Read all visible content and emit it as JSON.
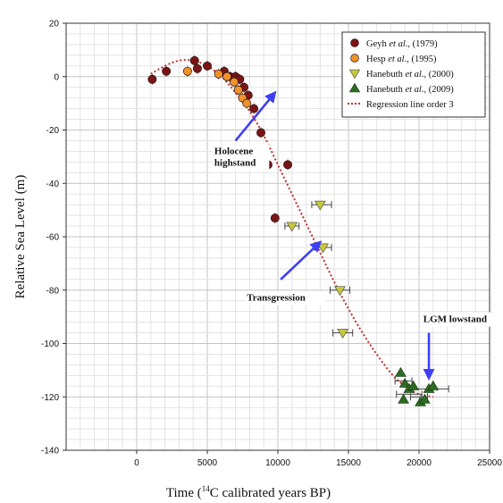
{
  "chart_data": {
    "type": "scatter",
    "xlabel_prefix": "Time (",
    "xlabel_sup": "14",
    "xlabel_suffix": "C calibrated years BP)",
    "ylabel": "Relative Sea Level (m)",
    "xlim": [
      -5000,
      25000
    ],
    "ylim": [
      -140,
      20
    ],
    "x_ticks": [
      0,
      5000,
      10000,
      15000,
      20000,
      25000
    ],
    "y_ticks": [
      20,
      0,
      -20,
      -40,
      -60,
      -80,
      -100,
      -120,
      -140
    ],
    "grid": true,
    "legend_position": "top-right",
    "series": [
      {
        "name_author": "Geyh ",
        "name_etal": "et al",
        "name_year": "., (1979)",
        "marker": "circle",
        "color": "#7a1515",
        "points": [
          {
            "x": 1100,
            "y": -1
          },
          {
            "x": 2100,
            "y": 2
          },
          {
            "x": 4100,
            "y": 6
          },
          {
            "x": 4300,
            "y": 3
          },
          {
            "x": 5000,
            "y": 4
          },
          {
            "x": 6200,
            "y": 2
          },
          {
            "x": 6600,
            "y": 0
          },
          {
            "x": 7000,
            "y": 0
          },
          {
            "x": 7300,
            "y": -1
          },
          {
            "x": 7600,
            "y": -4
          },
          {
            "x": 7900,
            "y": -7
          },
          {
            "x": 8300,
            "y": -12
          },
          {
            "x": 8800,
            "y": -21
          },
          {
            "x": 9300,
            "y": -33
          },
          {
            "x": 9800,
            "y": -53
          },
          {
            "x": 10700,
            "y": -33
          }
        ]
      },
      {
        "name_author": "Hesp ",
        "name_etal": "et al",
        "name_year": "., (1995)",
        "marker": "circle",
        "color": "#f0922a",
        "points": [
          {
            "x": 3600,
            "y": 2
          },
          {
            "x": 5800,
            "y": 1
          },
          {
            "x": 6400,
            "y": 0
          },
          {
            "x": 6900,
            "y": -2
          },
          {
            "x": 7200,
            "y": -5
          },
          {
            "x": 7500,
            "y": -8
          },
          {
            "x": 7800,
            "y": -10
          }
        ]
      },
      {
        "name_author": "Hanebuth ",
        "name_etal": "et al",
        "name_year": "., (2000)",
        "marker": "triangle-down",
        "color": "#c8c83a",
        "points": [
          {
            "x": 11000,
            "y": -56
          },
          {
            "x": 13000,
            "y": -48
          },
          {
            "x": 13200,
            "y": -64
          },
          {
            "x": 14400,
            "y": -80
          },
          {
            "x": 14600,
            "y": -96
          }
        ]
      },
      {
        "name_author": "Hanebuth ",
        "name_etal": "et al",
        "name_year": "., (2009)",
        "marker": "triangle-up",
        "color": "#2e6b22",
        "points": [
          {
            "x": 18700,
            "y": -111
          },
          {
            "x": 18900,
            "y": -121
          },
          {
            "x": 19000,
            "y": -115
          },
          {
            "x": 19300,
            "y": -117
          },
          {
            "x": 19600,
            "y": -116
          },
          {
            "x": 20100,
            "y": -122
          },
          {
            "x": 20400,
            "y": -121
          },
          {
            "x": 20700,
            "y": -117
          },
          {
            "x": 21000,
            "y": -116
          }
        ]
      }
    ],
    "error_bars": [
      {
        "x": 13100,
        "y": -48,
        "xerr": 700
      },
      {
        "x": 13200,
        "y": -64,
        "xerr": 600
      },
      {
        "x": 14400,
        "y": -80,
        "xerr": 700
      },
      {
        "x": 14600,
        "y": -96,
        "xerr": 700
      },
      {
        "x": 11000,
        "y": -56,
        "xerr": 500
      },
      {
        "x": 18900,
        "y": -114,
        "xerr": 600
      },
      {
        "x": 20000,
        "y": -120,
        "xerr": 600
      },
      {
        "x": 20800,
        "y": -117,
        "xerr": 1300
      },
      {
        "x": 19300,
        "y": -119,
        "xerr": 900
      }
    ],
    "regression": {
      "name": "Regression line order 3",
      "color": "#c03030",
      "points": [
        {
          "x": 1000,
          "y": 1
        },
        {
          "x": 2000,
          "y": 4
        },
        {
          "x": 3000,
          "y": 6
        },
        {
          "x": 4000,
          "y": 6
        },
        {
          "x": 5000,
          "y": 4
        },
        {
          "x": 6000,
          "y": 0
        },
        {
          "x": 7000,
          "y": -6
        },
        {
          "x": 8000,
          "y": -13
        },
        {
          "x": 9000,
          "y": -22
        },
        {
          "x": 10000,
          "y": -33
        },
        {
          "x": 11000,
          "y": -44
        },
        {
          "x": 12000,
          "y": -55
        },
        {
          "x": 13000,
          "y": -66
        },
        {
          "x": 14000,
          "y": -77
        },
        {
          "x": 15000,
          "y": -87
        },
        {
          "x": 16000,
          "y": -96
        },
        {
          "x": 17000,
          "y": -104
        },
        {
          "x": 18000,
          "y": -111
        },
        {
          "x": 19000,
          "y": -116
        },
        {
          "x": 20000,
          "y": -119
        },
        {
          "x": 21000,
          "y": -120
        }
      ]
    },
    "annotations": [
      {
        "lines": [
          "Holocene",
          "highstand"
        ],
        "text_x": 5500,
        "text_y": -29,
        "arrow_from": [
          7000,
          -24
        ],
        "arrow_to": [
          9800,
          -6
        ]
      },
      {
        "lines": [
          "Transgression"
        ],
        "text_x": 7800,
        "text_y": -84,
        "arrow_from": [
          10200,
          -76
        ],
        "arrow_to": [
          13000,
          -62
        ]
      },
      {
        "lines": [
          "LGM lowstand"
        ],
        "text_x": 20300,
        "text_y": -92,
        "arrow_from": [
          20700,
          -96
        ],
        "arrow_to": [
          20700,
          -113
        ]
      }
    ]
  }
}
